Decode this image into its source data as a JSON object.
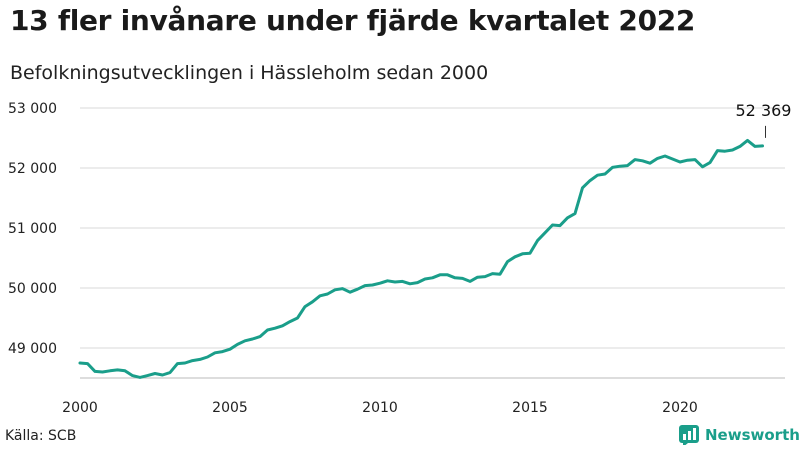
{
  "title": "13 fler invånare under fjärde kvartalet 2022",
  "subtitle": "Befolkningsutvecklingen i Hässleholm sedan 2000",
  "source": "Källa: SCB",
  "brand": "Newsworthy",
  "colors": {
    "line": "#1a9e8a",
    "grid": "#d9d9d9",
    "brand": "#1a9e8a"
  },
  "chart_data": {
    "type": "line",
    "title": "13 fler invånare under fjärde kvartalet 2022",
    "subtitle": "Befolkningsutvecklingen i Hässleholm sedan 2000",
    "xlabel": "",
    "ylabel": "",
    "xlim": [
      2000.0,
      2023.5
    ],
    "ylim": [
      48500,
      53000
    ],
    "yticks": [
      49000,
      50000,
      51000,
      52000,
      53000
    ],
    "ytick_labels": [
      "49 000",
      "50 000",
      "51 000",
      "52 000",
      "53 000"
    ],
    "xticks": [
      2000,
      2005,
      2010,
      2015,
      2020
    ],
    "xtick_labels": [
      "2000",
      "2005",
      "2010",
      "2015",
      "2020"
    ],
    "grid": true,
    "annotation": {
      "label": "52 369",
      "x": 2022.75,
      "y": 52369
    },
    "series": [
      {
        "x": [
          2000.0,
          2000.25,
          2000.5,
          2000.75,
          2001.0,
          2001.25,
          2001.5,
          2001.75,
          2002.0,
          2002.25,
          2002.5,
          2002.75,
          2003.0,
          2003.25,
          2003.5,
          2003.75,
          2004.0,
          2004.25,
          2004.5,
          2004.75,
          2005.0,
          2005.25,
          2005.5,
          2005.75,
          2006.0,
          2006.25,
          2006.5,
          2006.75,
          2007.0,
          2007.25,
          2007.5,
          2007.75,
          2008.0,
          2008.25,
          2008.5,
          2008.75,
          2009.0,
          2009.25,
          2009.5,
          2009.75,
          2010.0,
          2010.25,
          2010.5,
          2010.75,
          2011.0,
          2011.25,
          2011.5,
          2011.75,
          2012.0,
          2012.25,
          2012.5,
          2012.75,
          2013.0,
          2013.25,
          2013.5,
          2013.75,
          2014.0,
          2014.25,
          2014.5,
          2014.75,
          2015.0,
          2015.25,
          2015.5,
          2015.75,
          2016.0,
          2016.25,
          2016.5,
          2016.75,
          2017.0,
          2017.25,
          2017.5,
          2017.75,
          2018.0,
          2018.25,
          2018.5,
          2018.75,
          2019.0,
          2019.25,
          2019.5,
          2019.75,
          2020.0,
          2020.25,
          2020.5,
          2020.75,
          2021.0,
          2021.25,
          2021.5,
          2021.75,
          2022.0,
          2022.25,
          2022.5,
          2022.75
        ],
        "values": [
          48750,
          48740,
          48610,
          48600,
          48620,
          48635,
          48620,
          48540,
          48510,
          48540,
          48575,
          48550,
          48590,
          48740,
          48750,
          48790,
          48810,
          48850,
          48920,
          48940,
          48980,
          49060,
          49120,
          49150,
          49190,
          49300,
          49330,
          49370,
          49440,
          49500,
          49690,
          49770,
          49870,
          49900,
          49970,
          49990,
          49930,
          49980,
          50040,
          50050,
          50080,
          50120,
          50100,
          50110,
          50070,
          50090,
          50150,
          50170,
          50220,
          50220,
          50170,
          50160,
          50110,
          50180,
          50190,
          50240,
          50230,
          50440,
          50520,
          50570,
          50580,
          50790,
          50920,
          51050,
          51040,
          51170,
          51240,
          51670,
          51790,
          51880,
          51900,
          52010,
          52030,
          52040,
          52140,
          52120,
          52080,
          52160,
          52200,
          52150,
          52100,
          52130,
          52140,
          52020,
          52090,
          52290,
          52280,
          52300,
          52360,
          52460,
          52360,
          52369
        ]
      }
    ]
  }
}
